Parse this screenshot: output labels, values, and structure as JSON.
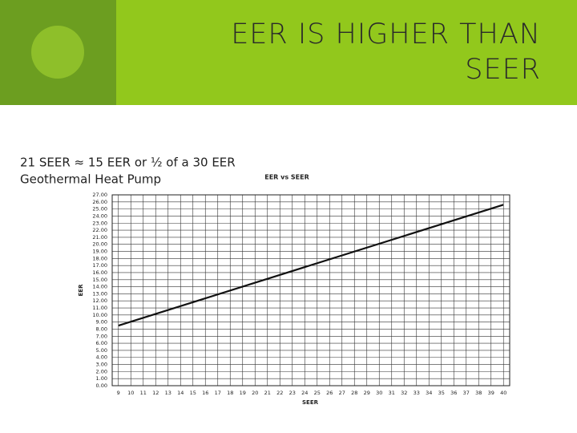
{
  "header": {
    "title_lines": [
      "EER IS HIGHER THAN",
      "SEER"
    ]
  },
  "body": {
    "lines": [
      "21 SEER ≈ 15 EER or ½ of a 30 EER",
      "Geothermal Heat Pump"
    ]
  },
  "chart_data": {
    "type": "line",
    "title": "EER vs SEER",
    "x_label": "SEER",
    "y_label": "EER",
    "x": [
      9,
      40
    ],
    "series": [
      {
        "name": "EER",
        "color": "#111111",
        "values": [
          8.5,
          25.6
        ]
      }
    ],
    "xlim": [
      8.5,
      40.5
    ],
    "xticks": [
      9,
      10,
      11,
      12,
      13,
      14,
      15,
      16,
      17,
      18,
      19,
      20,
      21,
      22,
      23,
      24,
      25,
      26,
      27,
      28,
      29,
      30,
      31,
      32,
      33,
      34,
      35,
      36,
      37,
      38,
      39,
      40
    ],
    "ylim": [
      0,
      27
    ],
    "yticks": [
      {
        "value": 0,
        "label": "0.00"
      },
      {
        "value": 1,
        "label": "1.00"
      },
      {
        "value": 2,
        "label": "2.00"
      },
      {
        "value": 3,
        "label": "3.00"
      },
      {
        "value": 4,
        "label": "4.00"
      },
      {
        "value": 5,
        "label": "5.00"
      },
      {
        "value": 6,
        "label": "6.00"
      },
      {
        "value": 7,
        "label": "7.00"
      },
      {
        "value": 8,
        "label": "8.00"
      },
      {
        "value": 9,
        "label": "9.00"
      },
      {
        "value": 10,
        "label": "10.00"
      },
      {
        "value": 11,
        "label": "11.00"
      },
      {
        "value": 12,
        "label": "12.00"
      },
      {
        "value": 13,
        "label": "13.00"
      },
      {
        "value": 14,
        "label": "14.00"
      },
      {
        "value": 15,
        "label": "15.00"
      },
      {
        "value": 16,
        "label": "16.00"
      },
      {
        "value": 17,
        "label": "17.00"
      },
      {
        "value": 18,
        "label": "18.00"
      },
      {
        "value": 19,
        "label": "19.00"
      },
      {
        "value": 20,
        "label": "20.00"
      },
      {
        "value": 21,
        "label": "21.00"
      },
      {
        "value": 22,
        "label": "22.00"
      },
      {
        "value": 23,
        "label": "23.00"
      },
      {
        "value": 24,
        "label": "24.00"
      },
      {
        "value": 25,
        "label": "25.00"
      },
      {
        "value": 26,
        "label": "26.00"
      },
      {
        "value": 27,
        "label": "27.00"
      }
    ],
    "grid": true
  }
}
